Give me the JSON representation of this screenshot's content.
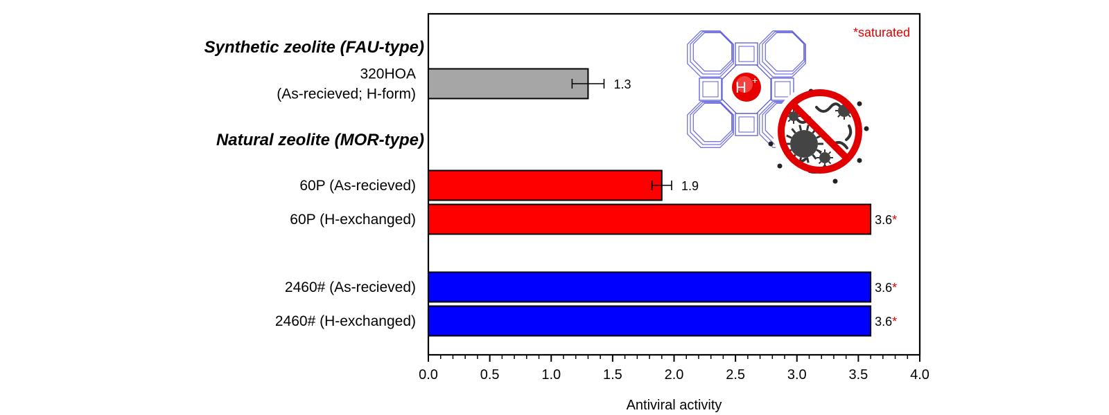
{
  "chart_data": {
    "type": "bar",
    "orientation": "horizontal",
    "groups": [
      {
        "title": "Synthetic zeolite (FAU-type)"
      },
      {
        "title": "Natural zeolite (MOR-type)"
      }
    ],
    "bars": [
      {
        "group": 0,
        "label_lines": [
          "320HOA",
          "(As-recieved; H-form)"
        ],
        "value": 1.3,
        "error": 0.13,
        "value_label": "1.3",
        "star": "",
        "color": "#a6a6a6"
      },
      {
        "group": 1,
        "label_lines": [
          "60P (As-recieved)"
        ],
        "value": 1.9,
        "error": 0.08,
        "value_label": "1.9",
        "star": "",
        "color": "#ff0000"
      },
      {
        "group": 1,
        "label_lines": [
          "60P (H-exchanged)"
        ],
        "value": 3.6,
        "error": null,
        "value_label": "3.6",
        "star": "*",
        "color": "#ff0000"
      },
      {
        "group": 1,
        "label_lines": [
          "2460# (As-recieved)"
        ],
        "value": 3.6,
        "error": null,
        "value_label": "3.6",
        "star": "*",
        "color": "#0000ff"
      },
      {
        "group": 1,
        "label_lines": [
          "2460# (H-exchanged)"
        ],
        "value": 3.6,
        "error": null,
        "value_label": "3.6",
        "star": "*",
        "color": "#0000ff"
      }
    ],
    "xlabel": "Antiviral activity",
    "xlim": [
      0,
      4.0
    ],
    "xticks": [
      "0.0",
      "0.5",
      "1.0",
      "1.5",
      "2.0",
      "2.5",
      "3.0",
      "3.5",
      "4.0"
    ],
    "grid": false,
    "annotation": "*saturated",
    "annotation_color": "#e00000",
    "star_color": "#e00000"
  },
  "illustration": {
    "ion_label": "H",
    "ion_charge": "+",
    "framework_color": "#5b5bd6",
    "prohibition_color": "#e00000"
  }
}
